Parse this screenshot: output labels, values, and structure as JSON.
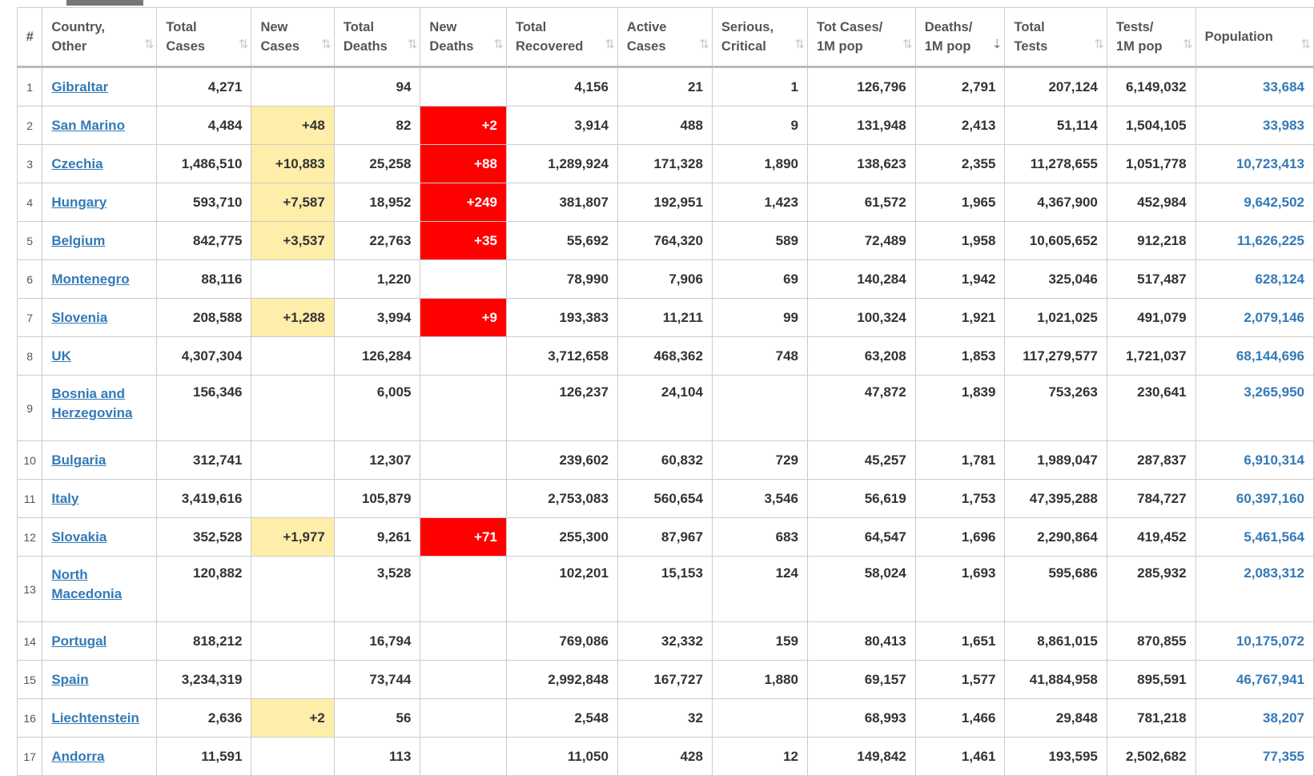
{
  "headers": [
    {
      "key": "idx",
      "label": "#",
      "sort": ""
    },
    {
      "key": "country",
      "label": "Country,\nOther",
      "sort": "⇅"
    },
    {
      "key": "total_cases",
      "label": "Total\nCases",
      "sort": "⇅"
    },
    {
      "key": "new_cases",
      "label": "New\nCases",
      "sort": "⇅"
    },
    {
      "key": "total_deaths",
      "label": "Total\nDeaths",
      "sort": "⇅"
    },
    {
      "key": "new_deaths",
      "label": "New\nDeaths",
      "sort": "⇅"
    },
    {
      "key": "total_recovered",
      "label": "Total\nRecovered",
      "sort": "⇅"
    },
    {
      "key": "active_cases",
      "label": "Active\nCases",
      "sort": "⇅"
    },
    {
      "key": "serious",
      "label": "Serious,\nCritical",
      "sort": "⇅"
    },
    {
      "key": "cases_per_m",
      "label": "Tot Cases/\n1M pop",
      "sort": "⇅"
    },
    {
      "key": "deaths_per_m",
      "label": "Deaths/\n1M pop",
      "sort": "⇣",
      "active": true
    },
    {
      "key": "total_tests",
      "label": "Total\nTests",
      "sort": "⇅"
    },
    {
      "key": "tests_per_m",
      "label": "Tests/\n1M pop",
      "sort": "⇅"
    },
    {
      "key": "population",
      "label": "Population",
      "sort": "⇅"
    }
  ],
  "rows": [
    {
      "idx": "1",
      "country": "Gibraltar",
      "total_cases": "4,271",
      "new_cases": "",
      "total_deaths": "94",
      "new_deaths": "",
      "total_recovered": "4,156",
      "active_cases": "21",
      "serious": "1",
      "cases_per_m": "126,796",
      "deaths_per_m": "2,791",
      "total_tests": "207,124",
      "tests_per_m": "6,149,032",
      "population": "33,684"
    },
    {
      "idx": "2",
      "country": "San Marino",
      "total_cases": "4,484",
      "new_cases": "+48",
      "total_deaths": "82",
      "new_deaths": "+2",
      "total_recovered": "3,914",
      "active_cases": "488",
      "serious": "9",
      "cases_per_m": "131,948",
      "deaths_per_m": "2,413",
      "total_tests": "51,114",
      "tests_per_m": "1,504,105",
      "population": "33,983"
    },
    {
      "idx": "3",
      "country": "Czechia",
      "total_cases": "1,486,510",
      "new_cases": "+10,883",
      "total_deaths": "25,258",
      "new_deaths": "+88",
      "total_recovered": "1,289,924",
      "active_cases": "171,328",
      "serious": "1,890",
      "cases_per_m": "138,623",
      "deaths_per_m": "2,355",
      "total_tests": "11,278,655",
      "tests_per_m": "1,051,778",
      "population": "10,723,413"
    },
    {
      "idx": "4",
      "country": "Hungary",
      "total_cases": "593,710",
      "new_cases": "+7,587",
      "total_deaths": "18,952",
      "new_deaths": "+249",
      "total_recovered": "381,807",
      "active_cases": "192,951",
      "serious": "1,423",
      "cases_per_m": "61,572",
      "deaths_per_m": "1,965",
      "total_tests": "4,367,900",
      "tests_per_m": "452,984",
      "population": "9,642,502"
    },
    {
      "idx": "5",
      "country": "Belgium",
      "total_cases": "842,775",
      "new_cases": "+3,537",
      "total_deaths": "22,763",
      "new_deaths": "+35",
      "total_recovered": "55,692",
      "active_cases": "764,320",
      "serious": "589",
      "cases_per_m": "72,489",
      "deaths_per_m": "1,958",
      "total_tests": "10,605,652",
      "tests_per_m": "912,218",
      "population": "11,626,225"
    },
    {
      "idx": "6",
      "country": "Montenegro",
      "total_cases": "88,116",
      "new_cases": "",
      "total_deaths": "1,220",
      "new_deaths": "",
      "total_recovered": "78,990",
      "active_cases": "7,906",
      "serious": "69",
      "cases_per_m": "140,284",
      "deaths_per_m": "1,942",
      "total_tests": "325,046",
      "tests_per_m": "517,487",
      "population": "628,124"
    },
    {
      "idx": "7",
      "country": "Slovenia",
      "total_cases": "208,588",
      "new_cases": "+1,288",
      "total_deaths": "3,994",
      "new_deaths": "+9",
      "total_recovered": "193,383",
      "active_cases": "11,211",
      "serious": "99",
      "cases_per_m": "100,324",
      "deaths_per_m": "1,921",
      "total_tests": "1,021,025",
      "tests_per_m": "491,079",
      "population": "2,079,146"
    },
    {
      "idx": "8",
      "country": "UK",
      "total_cases": "4,307,304",
      "new_cases": "",
      "total_deaths": "126,284",
      "new_deaths": "",
      "total_recovered": "3,712,658",
      "active_cases": "468,362",
      "serious": "748",
      "cases_per_m": "63,208",
      "deaths_per_m": "1,853",
      "total_tests": "117,279,577",
      "tests_per_m": "1,721,037",
      "population": "68,144,696"
    },
    {
      "idx": "9",
      "country": "Bosnia and Herzegovina",
      "tall": true,
      "total_cases": "156,346",
      "new_cases": "",
      "total_deaths": "6,005",
      "new_deaths": "",
      "total_recovered": "126,237",
      "active_cases": "24,104",
      "serious": "",
      "cases_per_m": "47,872",
      "deaths_per_m": "1,839",
      "total_tests": "753,263",
      "tests_per_m": "230,641",
      "population": "3,265,950"
    },
    {
      "idx": "10",
      "country": "Bulgaria",
      "total_cases": "312,741",
      "new_cases": "",
      "total_deaths": "12,307",
      "new_deaths": "",
      "total_recovered": "239,602",
      "active_cases": "60,832",
      "serious": "729",
      "cases_per_m": "45,257",
      "deaths_per_m": "1,781",
      "total_tests": "1,989,047",
      "tests_per_m": "287,837",
      "population": "6,910,314"
    },
    {
      "idx": "11",
      "country": "Italy",
      "total_cases": "3,419,616",
      "new_cases": "",
      "total_deaths": "105,879",
      "new_deaths": "",
      "total_recovered": "2,753,083",
      "active_cases": "560,654",
      "serious": "3,546",
      "cases_per_m": "56,619",
      "deaths_per_m": "1,753",
      "total_tests": "47,395,288",
      "tests_per_m": "784,727",
      "population": "60,397,160"
    },
    {
      "idx": "12",
      "country": "Slovakia",
      "total_cases": "352,528",
      "new_cases": "+1,977",
      "total_deaths": "9,261",
      "new_deaths": "+71",
      "total_recovered": "255,300",
      "active_cases": "87,967",
      "serious": "683",
      "cases_per_m": "64,547",
      "deaths_per_m": "1,696",
      "total_tests": "2,290,864",
      "tests_per_m": "419,452",
      "population": "5,461,564"
    },
    {
      "idx": "13",
      "country": "North Macedonia",
      "tall": true,
      "total_cases": "120,882",
      "new_cases": "",
      "total_deaths": "3,528",
      "new_deaths": "",
      "total_recovered": "102,201",
      "active_cases": "15,153",
      "serious": "124",
      "cases_per_m": "58,024",
      "deaths_per_m": "1,693",
      "total_tests": "595,686",
      "tests_per_m": "285,932",
      "population": "2,083,312"
    },
    {
      "idx": "14",
      "country": "Portugal",
      "total_cases": "818,212",
      "new_cases": "",
      "total_deaths": "16,794",
      "new_deaths": "",
      "total_recovered": "769,086",
      "active_cases": "32,332",
      "serious": "159",
      "cases_per_m": "80,413",
      "deaths_per_m": "1,651",
      "total_tests": "8,861,015",
      "tests_per_m": "870,855",
      "population": "10,175,072"
    },
    {
      "idx": "15",
      "country": "Spain",
      "total_cases": "3,234,319",
      "new_cases": "",
      "total_deaths": "73,744",
      "new_deaths": "",
      "total_recovered": "2,992,848",
      "active_cases": "167,727",
      "serious": "1,880",
      "cases_per_m": "69,157",
      "deaths_per_m": "1,577",
      "total_tests": "41,884,958",
      "tests_per_m": "895,591",
      "population": "46,767,941"
    },
    {
      "idx": "16",
      "country": "Liechtenstein",
      "total_cases": "2,636",
      "new_cases": "+2",
      "total_deaths": "56",
      "new_deaths": "",
      "total_recovered": "2,548",
      "active_cases": "32",
      "serious": "",
      "cases_per_m": "68,993",
      "deaths_per_m": "1,466",
      "total_tests": "29,848",
      "tests_per_m": "781,218",
      "population": "38,207"
    },
    {
      "idx": "17",
      "country": "Andorra",
      "total_cases": "11,591",
      "new_cases": "",
      "total_deaths": "113",
      "new_deaths": "",
      "total_recovered": "11,050",
      "active_cases": "428",
      "serious": "12",
      "cases_per_m": "149,842",
      "deaths_per_m": "1,461",
      "total_tests": "193,595",
      "tests_per_m": "2,502,682",
      "population": "77,355"
    }
  ]
}
